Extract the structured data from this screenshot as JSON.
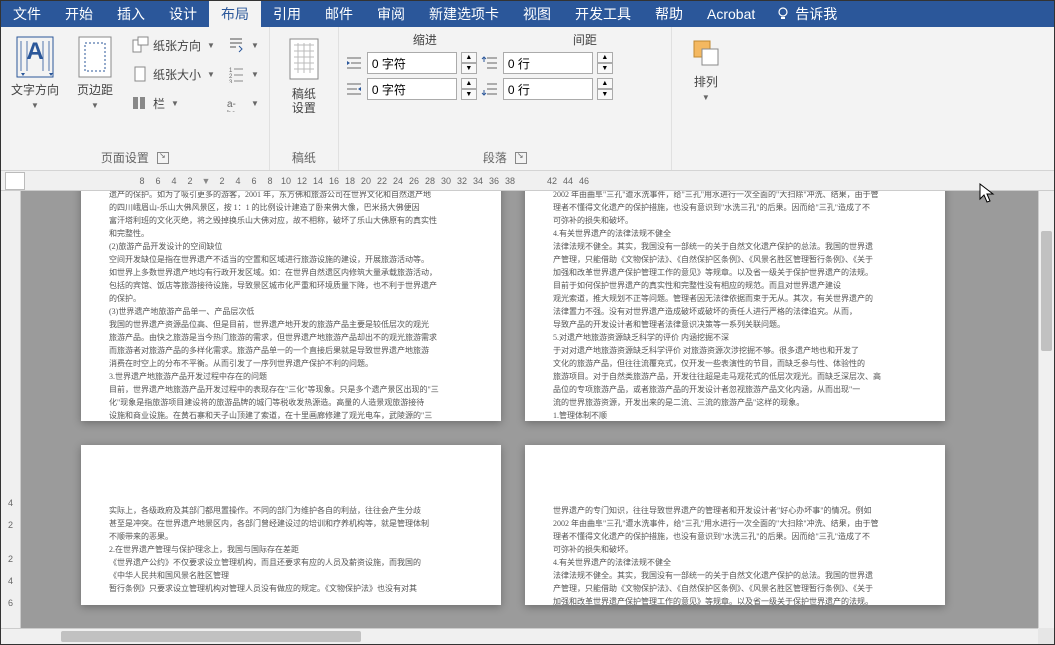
{
  "menu": {
    "tabs": [
      "文件",
      "开始",
      "插入",
      "设计",
      "布局",
      "引用",
      "邮件",
      "审阅",
      "新建选项卡",
      "视图",
      "开发工具",
      "帮助",
      "Acrobat"
    ],
    "active_index": 4,
    "tell_me": "告诉我"
  },
  "ribbon": {
    "page_setup": {
      "label": "页面设置",
      "text_direction": "文字方向",
      "margins": "页边距",
      "orientation": "纸张方向",
      "size": "纸张大小",
      "columns": "栏"
    },
    "manuscript": {
      "label": "稿纸",
      "button": "稿纸\n设置"
    },
    "paragraph": {
      "label": "段落",
      "indent_label": "缩进",
      "spacing_label": "间距",
      "indent_left": "0 字符",
      "indent_right": "0 字符",
      "spacing_before": "0 行",
      "spacing_after": "0 行"
    },
    "arrange": {
      "label": "排列"
    }
  },
  "ruler": {
    "h_left": [
      "8",
      "6",
      "4",
      "2"
    ],
    "h_right": [
      "2",
      "4",
      "6",
      "8",
      "10",
      "12",
      "14",
      "16",
      "18",
      "20",
      "22",
      "24",
      "26",
      "28",
      "30",
      "32",
      "34",
      "36",
      "38"
    ],
    "h_far": [
      "42",
      "44",
      "46"
    ],
    "v": [
      "4",
      "2",
      "",
      "2",
      "4",
      "6"
    ]
  },
  "document": {
    "page1": [
      "遗产的保护。如为了吸引更多的游客，2001 年，东方佛和旅游公司在世界文化和自然遗产地",
      "的四川峨眉山-乐山大佛风景区，按 1：1 的比例设计建造了卧来佛大像，巴米扬大佛便因",
      "富汗塔利班的文化灭绝，将之毁掉换乐山大佛对应，故不相称，破坏了乐山大佛原有的真实性",
      "和完整性。",
      "(2)旅游产品开发设计的空间缺位",
      "空间开发缺位是指在世界遗产不适当的空置和区域进行旅游设施的建设，开展旅游活动等。",
      "如世界上多数世界遗产地均有行政开发区域。如：在世界自然遗区内修筑大量承载旅游活动，",
      "包括的宾馆、饭店等旅游接待设施，导致景区城市化严重和环境质量下降，也不利于世界遗产",
      "的保护。",
      "(3)世界遗产地旅游产品单一、产品层次低",
      "我国的世界遗产资源品位高、但是目前，世界遗产地开发的旅游产品主要是较低层次的观光",
      "旅游产品。由快之旅游是当今热门旅游的需求，但世界遗产地旅游产品却出不的观光旅游需求",
      "而旅游者对旅游产品的多样化需求。旅游产品单一的一个直接后果就是导致世界遗产地旅游",
      "消费在时空上的分布不平衡。从而引发了一序列世界遗产保护不利的问题。",
      "3.世界遗产地旅游产品开发过程中存在的问题",
      "目前，世界遗产地旅游产品开发过程中的表现存在\"三化\"等现象。只是多个遗产景区出现的\"三",
      "化\"现象是指旅游项目建设将的旅游品牌的城门等税收发热源造。高量的人造景观旅游接待",
      "设施和商业设施。在黄石寨和天子山顶建了索道，在十里画廊修建了观光电车，武陵源的\"三"
    ],
    "page2": [
      "2002 年由曲阜\"三孔\"遭水洗事件，给\"三孔\"用水进行一次全面的\"大扫除\"冲洗、结果，由于管",
      "理者不懂得文化遗产的保护措施，也没有意识到\"水洗三孔\"的后果。因而给\"三孔\"造成了不",
      "可弥补的损失和破坏。",
      "4.有关世界遗产的法律法规不健全",
      "法律法规不健全。其实，我国没有一部统一的关于自然文化遗产保护的总法。我国的世界遗",
      "产管理，只能借助《文物保护法》、《自然保护区条例》、《风景名胜区管理暂行条例》、《关于",
      "加强和改革世界遗产保护管理工作的意见》等规章。以及省一级关于保护世界遗产的法规。",
      "目前于如何保护世界遗产的真实性和完整性没有相应的规范。而且对世界遗产建设",
      "观光索道，推大规划不正等问题。管理者因无法律依据而束于无从。其次，有关世界遗产的",
      "法律置力不强。没有对世界遗产造成破坏或破坏的责任人进行严格的法律追究。从而，",
      "导致产品的开发设计者和管理者法律意识决策等一系列关联问题。",
      "5.对遗产地旅游资源缺乏科学的评价  内涵挖掘不深",
      "于对对遗产地旅游资源缺乏科学评价  对旅游资源次涉挖掘不够。很多遗产地也和开发了",
      "文化的旅游产品，但往往流覆充式，仅开发一些表演性的节目，而缺乏参与性、体验性的",
      "旅游项目。对于自然类旅游产品，开发往往超是走马观花式的低层次观光。而缺乏深层次、高",
      "品位的专项旅游产品，或者旅游产品的开发设计者忽视旅游产品文化内涵，从而出现\"一",
      "流的世界旅游资源，开发出来的是二流、三流的旅游产品\"这样的现象。",
      "1.管理体制不顺",
      "我国的世界遗产根据资源状况分属于多个不同的管理部门，因而，世界遗产名义上属于国家，"
    ],
    "page3": [
      "实际上，各级政府及其部门都甩置操作。不同的部门为维护各自的利益，往往会产生分歧",
      "甚至是冲突。在世界遗产地景区内，各部门曾经建设过的培训和疗养机构等，就是管理体制",
      "不顺带来的恶果。",
      "2.在世界遗产管理与保护理念上，我国与国际存在差距",
      "《世界遗产公约》不仅要求设立管理机构，而且还要求有应的人员及薪资设施，而我国的",
      "《中华人民共和国风景名胜区管理",
      "",
      "暂行条例》只要求设立管理机构对管理人员没有做应的规定。《文物保护法》也没有对其"
    ],
    "page4": [
      "世界遗产的专门知识，往往导致世界遗产的管理者和开发设计者\"好心办坏事\"的情况。例如",
      "2002 年由曲阜\"三孔\"遭水洗事件，给\"三孔\"用水进行一次全面的\"大扫除\"冲洗、结果，由于管",
      "理者不懂得文化遗产的保护措施，也没有意识到\"水洗三孔\"的后果。因而给\"三孔\"造成了不",
      "可弥补的损失和破坏。",
      "4.有关世界遗产的法律法规不健全",
      "法律法规不健全。其实，我国没有一部统一的关于自然文化遗产保护的总法。我国的世界遗",
      "产管理，只能借助《文物保护法》、《自然保护区条例》、《风景名胜区管理暂行条例》、《关于",
      "加强和改革世界遗产保护管理工作的意见》等规章。以及省一级关于保护世界遗产的法规。"
    ]
  }
}
